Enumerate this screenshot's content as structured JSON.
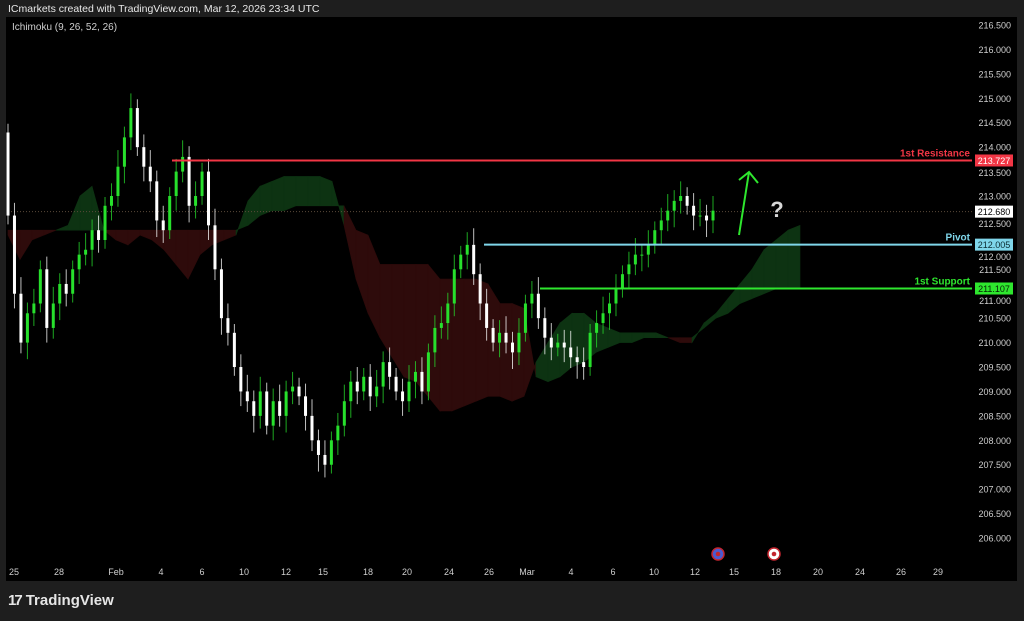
{
  "header": {
    "attribution": "ICmarkets created with TradingView.com, Mar 12, 2026 23:34 UTC"
  },
  "indicator": {
    "label": "Ichimoku (9, 26, 52, 26)"
  },
  "footer": {
    "brand": "TradingView"
  },
  "colors": {
    "up": "#27e02c",
    "down": "#ffffff",
    "resistance": "#f23645",
    "pivot": "#7fd6ea",
    "support": "#2ee62e",
    "cloud_bull": "#0d3312",
    "cloud_bear": "#2e0b0b",
    "arrow": "#2ee62e"
  },
  "chart_data": {
    "type": "candlestick",
    "title": "",
    "ylim": [
      205.8,
      216.7
    ],
    "y_ticks": [
      "216.500",
      "216.000",
      "215.500",
      "215.000",
      "214.500",
      "214.000",
      "213.500",
      "213.000",
      "212.500",
      "212.000",
      "211.500",
      "211.000",
      "210.500",
      "210.000",
      "209.500",
      "209.000",
      "208.500",
      "208.000",
      "207.500",
      "207.000",
      "206.500",
      "206.000"
    ],
    "x_ticks": [
      "25",
      "28",
      "Feb",
      "4",
      "6",
      "10",
      "12",
      "15",
      "18",
      "20",
      "24",
      "26",
      "Mar",
      "4",
      "6",
      "10",
      "12",
      "15",
      "18",
      "20",
      "24",
      "26",
      "29"
    ],
    "first_open": 214.3,
    "close": [
      212.6,
      211.0,
      210.0,
      210.6,
      210.8,
      211.5,
      210.3,
      210.8,
      211.2,
      211.0,
      211.5,
      211.8,
      211.9,
      212.3,
      212.1,
      212.8,
      213.0,
      213.6,
      214.2,
      214.8,
      214.0,
      213.6,
      213.3,
      212.5,
      212.3,
      213.0,
      213.5,
      213.8,
      212.8,
      213.0,
      213.5,
      212.4,
      211.5,
      210.5,
      210.2,
      209.5,
      209.0,
      208.8,
      208.5,
      209.0,
      208.3,
      208.8,
      208.5,
      209.0,
      209.1,
      208.9,
      208.5,
      208.0,
      207.7,
      207.5,
      208.0,
      208.3,
      208.8,
      209.2,
      209.0,
      209.3,
      208.9,
      209.1,
      209.6,
      209.3,
      209.0,
      208.8,
      209.2,
      209.4,
      209.0,
      209.8,
      210.3,
      210.4,
      210.8,
      211.5,
      211.8,
      212.0,
      211.4,
      210.8,
      210.3,
      210.0,
      210.2,
      210.0,
      209.8,
      210.2,
      210.8,
      211.0,
      210.5,
      210.1,
      209.9,
      210.0,
      209.9,
      209.7,
      209.6,
      209.5,
      210.2,
      210.4,
      210.6,
      210.8,
      211.1,
      211.4,
      211.6,
      211.8,
      211.8,
      212.0,
      212.3,
      212.5,
      212.7,
      212.9,
      213.0,
      212.8,
      212.6,
      212.6,
      212.5,
      212.7
    ],
    "ichimoku_cloud": {
      "span_a": [
        212.2,
        211.7,
        212.1,
        212.2,
        212.3,
        212.4,
        213.0,
        213.2,
        212.3,
        212.1,
        212.0,
        212.2,
        212.1,
        211.9,
        211.6,
        211.3,
        211.8,
        212.0,
        212.1,
        212.2,
        212.9,
        213.2,
        213.3,
        213.4,
        213.4,
        213.4,
        213.4,
        213.3,
        212.4,
        211.3,
        210.6,
        210.1,
        209.7,
        209.3,
        209.2,
        208.9,
        208.6,
        208.6,
        208.7,
        208.8,
        208.9,
        208.9,
        208.8,
        208.9,
        209.6,
        210.0,
        210.4,
        210.6,
        210.6,
        210.4,
        210.3,
        210.2,
        210.2,
        210.2,
        210.2,
        210.1,
        210.0,
        210.0,
        210.4,
        210.6,
        210.9,
        211.2,
        211.5,
        211.9,
        212.1,
        212.3,
        212.4
      ],
      "span_b": [
        212.3,
        212.3,
        212.3,
        212.3,
        212.3,
        212.3,
        212.3,
        212.3,
        212.3,
        212.3,
        212.3,
        212.3,
        212.3,
        212.3,
        212.3,
        212.3,
        212.3,
        212.3,
        212.3,
        212.3,
        212.4,
        212.6,
        212.7,
        212.7,
        212.8,
        212.8,
        212.8,
        212.8,
        212.8,
        212.3,
        212.2,
        211.6,
        211.6,
        211.6,
        211.6,
        211.6,
        211.3,
        211.3,
        211.3,
        211.3,
        211.2,
        210.8,
        210.8,
        210.7,
        209.3,
        209.2,
        209.3,
        209.5,
        209.6,
        209.8,
        209.9,
        210.0,
        210.0,
        210.1,
        210.1,
        210.1,
        210.1,
        210.1,
        210.3,
        210.5,
        210.6,
        210.8,
        210.9,
        211.0,
        211.1,
        211.1,
        211.1
      ]
    },
    "levels": [
      {
        "name": "1st Resistance",
        "value": 213.727,
        "label": "213.727"
      },
      {
        "name": "Pivot",
        "value": 212.005,
        "label": "212.005"
      },
      {
        "name": "1st Support",
        "value": 211.107,
        "label": "211.107"
      }
    ],
    "last_price": {
      "value": 212.68,
      "label": "212.680"
    },
    "annotations": {
      "arrow": "up",
      "question": "?"
    }
  }
}
